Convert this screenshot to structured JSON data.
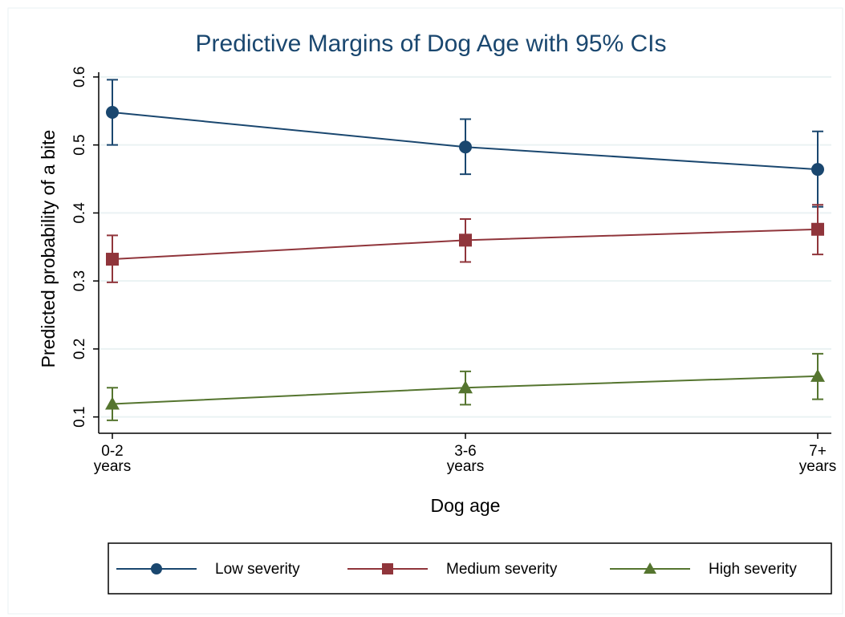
{
  "chart_data": {
    "type": "line",
    "title": "Predictive Margins of Dog Age with 95% CIs",
    "x_label": "Dog age",
    "y_label": "Predicted probability of a bite",
    "categories": [
      "0-2 years",
      "3-6 years",
      "7+ years"
    ],
    "series": [
      {
        "name": "Low severity",
        "color": "#1a476f",
        "marker": "circle",
        "values": [
          0.548,
          0.497,
          0.464
        ],
        "lower": [
          0.5,
          0.457,
          0.409
        ],
        "upper": [
          0.596,
          0.538,
          0.52
        ]
      },
      {
        "name": "Medium severity",
        "color": "#90353b",
        "marker": "square",
        "values": [
          0.332,
          0.36,
          0.376
        ],
        "lower": [
          0.298,
          0.328,
          0.339
        ],
        "upper": [
          0.367,
          0.391,
          0.412
        ]
      },
      {
        "name": "High severity",
        "color": "#55752f",
        "marker": "triangle",
        "values": [
          0.119,
          0.143,
          0.16
        ],
        "lower": [
          0.095,
          0.118,
          0.126
        ],
        "upper": [
          0.143,
          0.167,
          0.193
        ]
      }
    ],
    "ylim": [
      0.076,
      0.607
    ],
    "yticks": [
      0.1,
      0.2,
      0.3,
      0.4,
      0.5,
      0.6
    ],
    "grid": true,
    "legend": "bottom"
  }
}
